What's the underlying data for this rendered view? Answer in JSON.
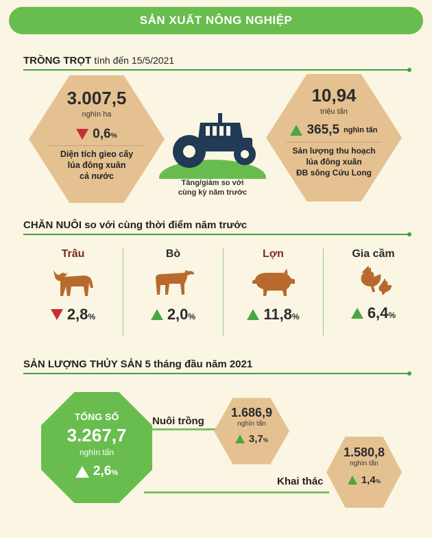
{
  "title": "SẢN XUẤT NÔNG NGHIỆP",
  "crop": {
    "heading": "TRỒNG TRỌT",
    "heading_sub": "tính đến 15/5/2021",
    "left": {
      "value": "3.007,5",
      "unit": "nghìn ha",
      "change": "0,6",
      "change_unit": "%",
      "direction": "down",
      "desc": [
        "Diện tích gieo cấy",
        "lúa đông xuân",
        "cả nước"
      ]
    },
    "right": {
      "value": "10,94",
      "unit": "triệu tấn",
      "change": "365,5",
      "change_unit": "nghìn tấn",
      "direction": "up",
      "desc": [
        "Sản lượng thu hoạch",
        "lúa đông xuân",
        "ĐB sông Cửu Long"
      ]
    },
    "note": [
      "Tăng/giảm so với",
      "cùng kỳ năm trước"
    ],
    "icon": "tractor-icon"
  },
  "livestock": {
    "heading": "CHĂN NUÔI",
    "heading_sub": "so với cùng thời điểm năm trước",
    "items": [
      {
        "name": "Trâu",
        "icon": "buffalo-icon",
        "value": "2,8",
        "unit": "%",
        "direction": "down",
        "name_color": "#7a2a25"
      },
      {
        "name": "Bò",
        "icon": "cow-icon",
        "value": "2,0",
        "unit": "%",
        "direction": "up",
        "name_color": "#2a2a2a"
      },
      {
        "name": "Lợn",
        "icon": "pig-icon",
        "value": "11,8",
        "unit": "%",
        "direction": "up",
        "name_color": "#7a2a25"
      },
      {
        "name": "Gia cầm",
        "icon": "chicken-icon",
        "value": "6,4",
        "unit": "%",
        "direction": "up",
        "name_color": "#2a2a2a"
      }
    ]
  },
  "fishery": {
    "heading": "SẢN LƯỢNG THỦY SẢN 5 tháng đầu năm 2021",
    "total": {
      "label": "TỔNG SỐ",
      "value": "3.267,7",
      "unit": "nghìn tấn",
      "change": "2,6",
      "change_unit": "%",
      "direction": "up"
    },
    "farming": {
      "label": "Nuôi trồng",
      "value": "1.686,9",
      "unit": "nghìn tấn",
      "change": "3,7",
      "change_unit": "%",
      "direction": "up"
    },
    "catching": {
      "label": "Khai thác",
      "value": "1.580,8",
      "unit": "nghìn tấn",
      "change": "1,4",
      "change_unit": "%",
      "direction": "up"
    }
  },
  "colors": {
    "green": "#69bd4e",
    "tan": "#e5c191",
    "red": "#c82d38",
    "navy": "#213a55",
    "background": "#faf6e3"
  }
}
